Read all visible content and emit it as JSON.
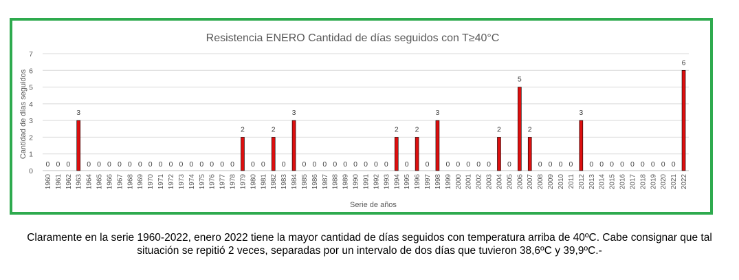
{
  "chart_data": {
    "type": "bar",
    "title": "Resistencia ENERO Cantidad de días seguidos con T≥40°C",
    "xlabel": "Serie de años",
    "ylabel": "Cantidad de días seguidos",
    "ylim": [
      0,
      7
    ],
    "yticks": [
      0,
      1,
      2,
      3,
      4,
      5,
      6,
      7
    ],
    "grid": true,
    "legend": "none",
    "categories": [
      "1960",
      "1961",
      "1962",
      "1963",
      "1964",
      "1965",
      "1966",
      "1967",
      "1968",
      "1969",
      "1970",
      "1971",
      "1972",
      "1973",
      "1974",
      "1975",
      "1976",
      "1977",
      "1978",
      "1979",
      "1980",
      "1981",
      "1982",
      "1983",
      "1984",
      "1985",
      "1986",
      "1987",
      "1988",
      "1989",
      "1990",
      "1991",
      "1992",
      "1993",
      "1994",
      "1995",
      "1996",
      "1997",
      "1998",
      "1999",
      "2000",
      "2001",
      "2002",
      "2003",
      "2004",
      "2005",
      "2006",
      "2007",
      "2008",
      "2009",
      "2010",
      "2011",
      "2012",
      "2013",
      "2014",
      "2015",
      "2016",
      "2017",
      "2018",
      "2019",
      "2020",
      "2021",
      "2022"
    ],
    "values": [
      0,
      0,
      0,
      3,
      0,
      0,
      0,
      0,
      0,
      0,
      0,
      0,
      0,
      0,
      0,
      0,
      0,
      0,
      0,
      2,
      0,
      0,
      2,
      0,
      3,
      0,
      0,
      0,
      0,
      0,
      0,
      0,
      0,
      0,
      2,
      0,
      2,
      0,
      3,
      0,
      0,
      0,
      0,
      0,
      2,
      0,
      5,
      2,
      0,
      0,
      0,
      0,
      3,
      0,
      0,
      0,
      0,
      0,
      0,
      0,
      0,
      0,
      6
    ]
  },
  "colors": {
    "bar_fill": "#dd0f0f",
    "bar_stroke": "#000000",
    "frame_border": "#2eaa4e",
    "gridline": "#d9d9d9",
    "title_text": "#595959",
    "axis_text": "#595959"
  },
  "caption": {
    "line1": "Claramente en la serie 1960-2022, enero 2022 tiene la mayor cantidad de días seguidos con temperatura arriba de 40ºC. Cabe consignar que tal",
    "line2": "situación se repitió 2 veces, separadas por un intervalo de dos días que tuvieron 38,6ºC y 39,9ºC.-"
  }
}
